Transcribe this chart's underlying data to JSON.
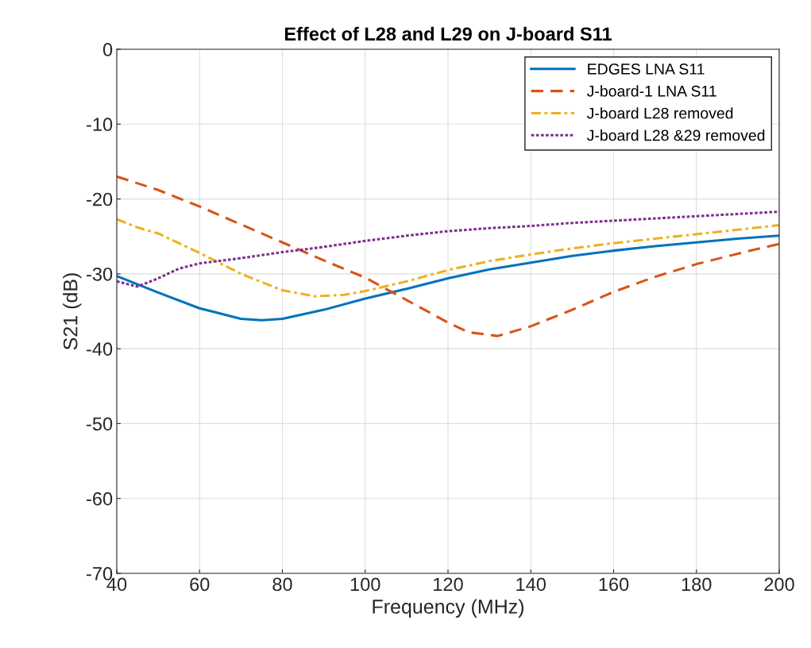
{
  "chart_data": {
    "type": "line",
    "title": "Effect of L28 and L29 on J-board S11",
    "xlabel": "Frequency (MHz)",
    "ylabel": "S21 (dB)",
    "xlim": [
      40,
      200
    ],
    "xticks": [
      40,
      60,
      80,
      100,
      120,
      140,
      160,
      180,
      200
    ],
    "ylim": [
      -70,
      0
    ],
    "yticks": [
      -70,
      -60,
      -50,
      -40,
      -30,
      -20,
      -10,
      0
    ],
    "grid": true,
    "legend": "top right",
    "series": [
      {
        "name": "EDGES LNA S11",
        "color": "#0072bd",
        "line_style": "solid",
        "x": [
          40,
          50,
          60,
          70,
          75,
          80,
          90,
          100,
          110,
          120,
          130,
          140,
          150,
          160,
          170,
          180,
          190,
          200
        ],
        "values": [
          -30.3,
          -32.5,
          -34.6,
          -36,
          -36.2,
          -36,
          -34.8,
          -33.3,
          -32,
          -30.6,
          -29.4,
          -28.5,
          -27.6,
          -26.9,
          -26.3,
          -25.8,
          -25.3,
          -24.9
        ]
      },
      {
        "name": "J-board-1 LNA S11",
        "color": "#d95319",
        "line_style": "dashed",
        "x": [
          40,
          50,
          60,
          70,
          80,
          90,
          100,
          110,
          120,
          125,
          132,
          140,
          150,
          160,
          170,
          180,
          190,
          200
        ],
        "values": [
          -17,
          -18.8,
          -21,
          -23.4,
          -25.8,
          -28.2,
          -30.5,
          -33.5,
          -36.5,
          -37.8,
          -38.3,
          -37,
          -34.8,
          -32.4,
          -30.4,
          -28.7,
          -27.3,
          -26
        ]
      },
      {
        "name": "J-board L28 removed",
        "color": "#edb120",
        "line_style": "dashdot",
        "x": [
          40,
          45,
          50,
          60,
          70,
          80,
          88,
          95,
          100,
          110,
          120,
          130,
          140,
          150,
          160,
          170,
          180,
          190,
          200
        ],
        "values": [
          -22.7,
          -23.8,
          -24.6,
          -27.2,
          -30,
          -32.2,
          -33,
          -32.8,
          -32.3,
          -31,
          -29.5,
          -28.3,
          -27.4,
          -26.6,
          -25.9,
          -25.3,
          -24.7,
          -24.1,
          -23.5
        ]
      },
      {
        "name": "J-board L28 &29 removed",
        "color": "#7e2f8e",
        "line_style": "dotted",
        "x": [
          40,
          45,
          50,
          55,
          60,
          70,
          80,
          90,
          100,
          110,
          120,
          130,
          140,
          150,
          160,
          170,
          180,
          190,
          200
        ],
        "values": [
          -31,
          -31.7,
          -30.6,
          -29.3,
          -28.6,
          -27.9,
          -27.1,
          -26.4,
          -25.6,
          -24.9,
          -24.3,
          -23.9,
          -23.6,
          -23.2,
          -22.9,
          -22.6,
          -22.3,
          -22,
          -21.7
        ]
      }
    ]
  }
}
